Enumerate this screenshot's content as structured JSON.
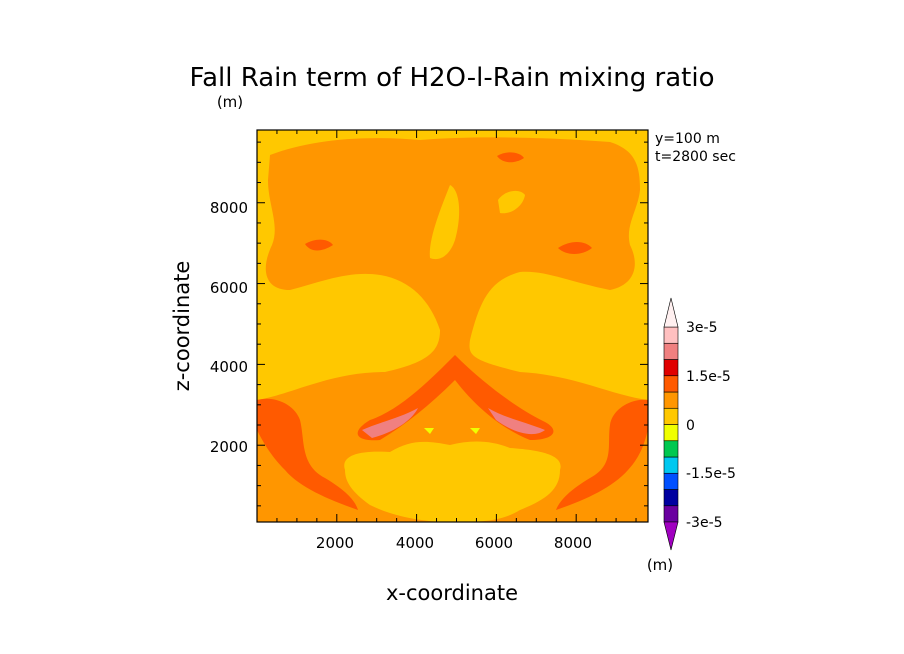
{
  "chart_data": {
    "type": "contour",
    "title": "Fall Rain term of H2O-l-Rain mixing ratio",
    "units_label": "(m)",
    "xlabel": "x-coordinate",
    "ylabel": "z-coordinate",
    "xlim": [
      0,
      9800
    ],
    "ylim": [
      100,
      9800
    ],
    "x_ticks": [
      2000,
      4000,
      6000,
      8000
    ],
    "y_ticks": [
      2000,
      4000,
      6000,
      8000
    ],
    "x_tick_labels": [
      "2000",
      "4000",
      "6000",
      "8000"
    ],
    "y_tick_labels": [
      "2000",
      "4000",
      "6000",
      "8000"
    ],
    "info": [
      "y=100 m",
      "t=2800 sec"
    ],
    "colorbar": {
      "levels": [
        -3e-05,
        -2.5e-05,
        -2e-05,
        -1.5e-05,
        -1e-05,
        -5e-06,
        0,
        5e-06,
        1e-05,
        1.5e-05,
        2e-05,
        2.5e-05,
        3e-05
      ],
      "colors": [
        "#a000c0",
        "#6a00a0",
        "#0000a0",
        "#0050ff",
        "#00c8f0",
        "#00c850",
        "#f0ff00",
        "#ffc800",
        "#ff9600",
        "#ff5a00",
        "#e00000",
        "#f08080",
        "#ffc0c0",
        "#fff0f0"
      ],
      "tick_labels": [
        "3e-5",
        "1.5e-5",
        "0",
        "-1.5e-5",
        "-3e-5"
      ],
      "units": "(m)"
    },
    "fields": {
      "background": 2.5e-06,
      "main_region": 7e-06,
      "banded": 1.1e-05,
      "peak": 2.1e-05,
      "low_core": -1e-06
    }
  }
}
